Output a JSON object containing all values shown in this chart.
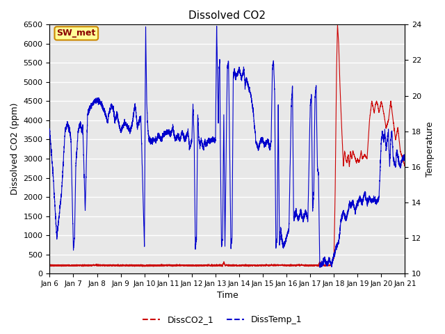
{
  "title": "Dissolved CO2",
  "xlabel": "Time",
  "ylabel_left": "Dissolved CO2 (ppm)",
  "ylabel_right": "Temperature",
  "ylim_left": [
    0,
    6500
  ],
  "ylim_right": [
    10,
    24
  ],
  "yticks_left": [
    0,
    500,
    1000,
    1500,
    2000,
    2500,
    3000,
    3500,
    4000,
    4500,
    5000,
    5500,
    6000,
    6500
  ],
  "yticks_right": [
    10,
    12,
    14,
    16,
    18,
    20,
    22,
    24
  ],
  "background_color": "#e8e8e8",
  "grid_color": "#ffffff",
  "legend_label_co2": "DissCO2_1",
  "legend_label_temp": "DissTemp_1",
  "line_color_co2": "#cc0000",
  "line_color_temp": "#0000cc",
  "annotation_text": "SW_met",
  "title_fontsize": 11,
  "axis_fontsize": 9,
  "tick_fontsize": 8
}
